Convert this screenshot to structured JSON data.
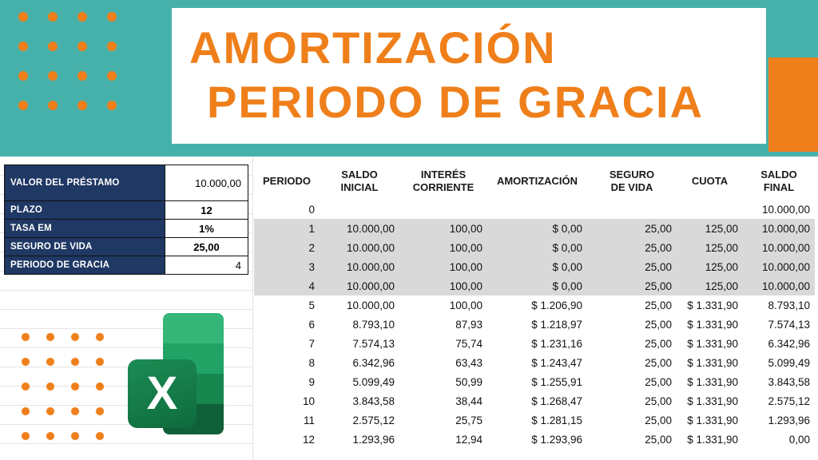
{
  "banner": {
    "title_line1": "AMORTIZACIÓN",
    "title_line2": "PERIODO DE GRACIA"
  },
  "params": {
    "rows": [
      {
        "label": "VALOR DEL PRÉSTAMO",
        "value": "10.000,00"
      },
      {
        "label": "PLAZO",
        "value": "12"
      },
      {
        "label": "TASA EM",
        "value": "1%"
      },
      {
        "label": "SEGURO DE VIDA",
        "value": "25,00"
      },
      {
        "label": "PERIODO DE GRACIA",
        "value": "4"
      }
    ]
  },
  "table": {
    "headers": [
      [
        "PERIODO"
      ],
      [
        "SALDO",
        "INICIAL"
      ],
      [
        "INTERÉS",
        "CORRIENTE"
      ],
      [
        "AMORTIZACIÓN"
      ],
      [
        "SEGURO",
        "DE VIDA"
      ],
      [
        "CUOTA"
      ],
      [
        "SALDO",
        "FINAL"
      ]
    ],
    "gray_row_indices": [
      1,
      2,
      3,
      4
    ],
    "rows": [
      [
        "0",
        "",
        "",
        "",
        "",
        "",
        "10.000,00"
      ],
      [
        "1",
        "10.000,00",
        "100,00",
        "$ 0,00",
        "25,00",
        "125,00",
        "10.000,00"
      ],
      [
        "2",
        "10.000,00",
        "100,00",
        "$ 0,00",
        "25,00",
        "125,00",
        "10.000,00"
      ],
      [
        "3",
        "10.000,00",
        "100,00",
        "$ 0,00",
        "25,00",
        "125,00",
        "10.000,00"
      ],
      [
        "4",
        "10.000,00",
        "100,00",
        "$ 0,00",
        "25,00",
        "125,00",
        "10.000,00"
      ],
      [
        "5",
        "10.000,00",
        "100,00",
        "$ 1.206,90",
        "25,00",
        "$ 1.331,90",
        "8.793,10"
      ],
      [
        "6",
        "8.793,10",
        "87,93",
        "$ 1.218,97",
        "25,00",
        "$ 1.331,90",
        "7.574,13"
      ],
      [
        "7",
        "7.574,13",
        "75,74",
        "$ 1.231,16",
        "25,00",
        "$ 1.331,90",
        "6.342,96"
      ],
      [
        "8",
        "6.342,96",
        "63,43",
        "$ 1.243,47",
        "25,00",
        "$ 1.331,90",
        "5.099,49"
      ],
      [
        "9",
        "5.099,49",
        "50,99",
        "$ 1.255,91",
        "25,00",
        "$ 1.331,90",
        "3.843,58"
      ],
      [
        "10",
        "3.843,58",
        "38,44",
        "$ 1.268,47",
        "25,00",
        "$ 1.331,90",
        "2.575,12"
      ],
      [
        "11",
        "2.575,12",
        "25,75",
        "$ 1.281,15",
        "25,00",
        "$ 1.331,90",
        "1.293,96"
      ],
      [
        "12",
        "1.293,96",
        "12,94",
        "$ 1.293,96",
        "25,00",
        "$ 1.331,90",
        "0,00"
      ]
    ]
  },
  "logo": {
    "letter": "X"
  },
  "colors": {
    "teal": "#46b1ab",
    "orange": "#ef7f1a",
    "navy": "#1f3864",
    "gray_row": "#d9d9d9",
    "excel_green": "#107c41"
  }
}
